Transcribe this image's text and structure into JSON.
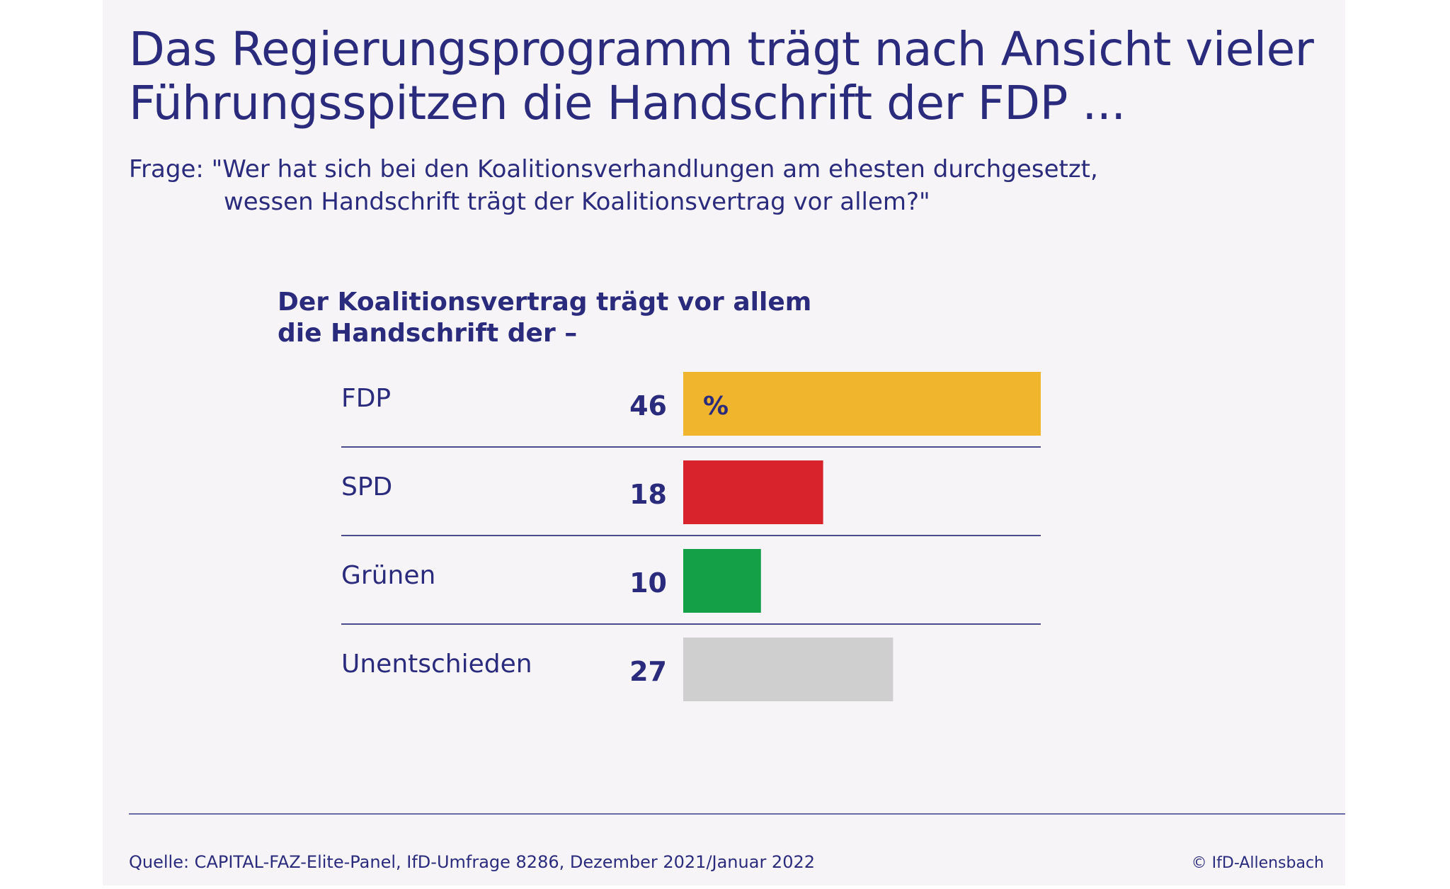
{
  "title_lines": [
    "Das Regierungsprogramm trägt nach Ansicht vieler",
    "Führungsspitzen die Handschrift der FDP ..."
  ],
  "question": {
    "line1": "Frage: \"Wer hat sich bei den Koalitionsverhandlungen am ehesten durchgesetzt,",
    "line2": "wessen Handschrift trägt der Koalitionsvertrag vor allem?\""
  },
  "subheading_lines": [
    "Der Koalitionsvertrag trägt vor allem",
    "die Handschrift der –"
  ],
  "source": "Quelle: CAPITAL-FAZ-Elite-Panel, IfD-Umfrage 8286, Dezember 2021/Januar 2022",
  "copyright": "© IfD-Allensbach",
  "colors": {
    "text": "#2b2b7e",
    "fdp": "#f0b42d",
    "spd": "#d8222c",
    "gruene": "#14a046",
    "unentschieden": "#cfcfcf",
    "rule": "#4b4b8e"
  },
  "chart_data": {
    "type": "bar",
    "orientation": "horizontal",
    "unit": "%",
    "categories": [
      "FDP",
      "SPD",
      "Grünen",
      "Unentschieden"
    ],
    "values": [
      46,
      18,
      10,
      27
    ],
    "bar_colors": [
      "#f0b42d",
      "#d8222c",
      "#14a046",
      "#cfcfcf"
    ],
    "xlim": [
      0,
      100
    ],
    "grid": false
  }
}
